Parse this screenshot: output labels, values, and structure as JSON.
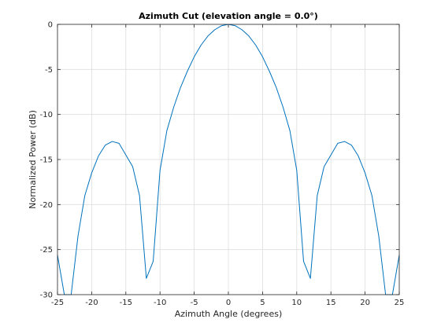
{
  "chart_data": {
    "type": "line",
    "title": "Azimuth Cut (elevation angle = 0.0°)",
    "xlabel": "Azimuth Angle (degrees)",
    "ylabel": "Normalized Power (dB)",
    "xlim": [
      -25,
      25
    ],
    "ylim": [
      -30,
      0
    ],
    "xticks": [
      -25,
      -20,
      -15,
      -10,
      -5,
      0,
      5,
      10,
      15,
      20,
      25
    ],
    "yticks": [
      0,
      -5,
      -10,
      -15,
      -20,
      -25,
      -30
    ],
    "grid": true,
    "legend": "none",
    "colors": {
      "line": "#0072bd",
      "grid": "#dedede",
      "axis": "#262626"
    },
    "series": [
      {
        "x": [
          -25,
          -24,
          -23,
          -22,
          -21,
          -20,
          -19,
          -18,
          -17,
          -16,
          -15,
          -14,
          -13,
          -12,
          -11,
          -10,
          -9,
          -8,
          -7,
          -6,
          -5,
          -4,
          -3,
          -2,
          -1,
          0,
          1,
          2,
          3,
          4,
          5,
          6,
          7,
          8,
          9,
          10,
          11,
          12,
          13,
          14,
          15,
          16,
          17,
          18,
          19,
          20,
          21,
          22,
          23,
          24,
          25
        ],
        "y": [
          -25.6,
          -30,
          -30,
          -23.5,
          -19,
          -16.5,
          -14.6,
          -13.4,
          -13.0,
          -13.2,
          -14.5,
          -15.8,
          -19.0,
          -28.2,
          -26.3,
          -16.2,
          -11.8,
          -9.2,
          -7.0,
          -5.2,
          -3.6,
          -2.3,
          -1.3,
          -0.6,
          -0.15,
          0,
          -0.15,
          -0.6,
          -1.3,
          -2.3,
          -3.6,
          -5.2,
          -7.0,
          -9.2,
          -11.8,
          -16.2,
          -26.3,
          -28.2,
          -19.0,
          -15.8,
          -14.5,
          -13.2,
          -13.0,
          -13.4,
          -14.6,
          -16.5,
          -19,
          -23.5,
          -30,
          -30,
          -25.6
        ]
      }
    ]
  }
}
